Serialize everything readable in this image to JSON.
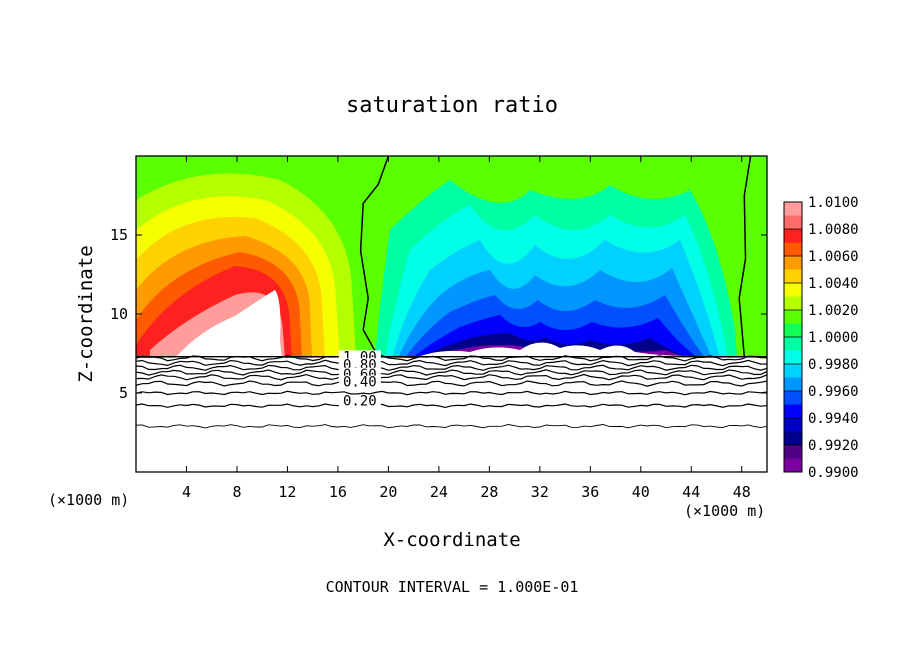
{
  "chart_data": {
    "type": "heatmap",
    "title": "saturation ratio",
    "xlabel": "X-coordinate",
    "ylabel": "Z-coordinate",
    "x_unit": "(×1000 m)",
    "xlim": [
      0,
      50
    ],
    "ylim": [
      0,
      20
    ],
    "x_ticks": [
      4,
      8,
      12,
      16,
      20,
      24,
      28,
      32,
      36,
      40,
      44,
      48
    ],
    "y_ticks": [
      5,
      10,
      15
    ],
    "footer": "CONTOUR INTERVAL = 1.000E-01",
    "colorbar": {
      "levels": [
        "1.0100",
        "1.0080",
        "1.0060",
        "1.0040",
        "1.0020",
        "1.0000",
        "0.9980",
        "0.9960",
        "0.9940",
        "0.9920",
        "0.9900"
      ],
      "colors": [
        "#ff9c9c",
        "#ff6b6b",
        "#ff2020",
        "#ff5a00",
        "#ff9a00",
        "#ffd200",
        "#f5ff00",
        "#b4ff00",
        "#5aff00",
        "#12ff55",
        "#00ffa5",
        "#00ffe6",
        "#00d2ff",
        "#0096ff",
        "#0050ff",
        "#0000ff",
        "#0000c8",
        "#00008c",
        "#500082",
        "#7d00a0"
      ]
    },
    "contour_labels": [
      "1.00",
      "0.80",
      "0.60",
      "0.40",
      "0.20"
    ],
    "series": [
      {
        "name": "1.0000 contour",
        "x": [
          20.0,
          19.2,
          18.0,
          17.8,
          18.4,
          18.0,
          19.2
        ],
        "y": [
          20.0,
          18.2,
          17.0,
          14.0,
          11.0,
          9.0,
          7.3
        ]
      },
      {
        "name": "1.0000 contour",
        "x": [
          48.7,
          48.2,
          48.3,
          47.8,
          48.2
        ],
        "y": [
          20.0,
          17.5,
          13.5,
          11.0,
          7.3
        ]
      }
    ]
  }
}
